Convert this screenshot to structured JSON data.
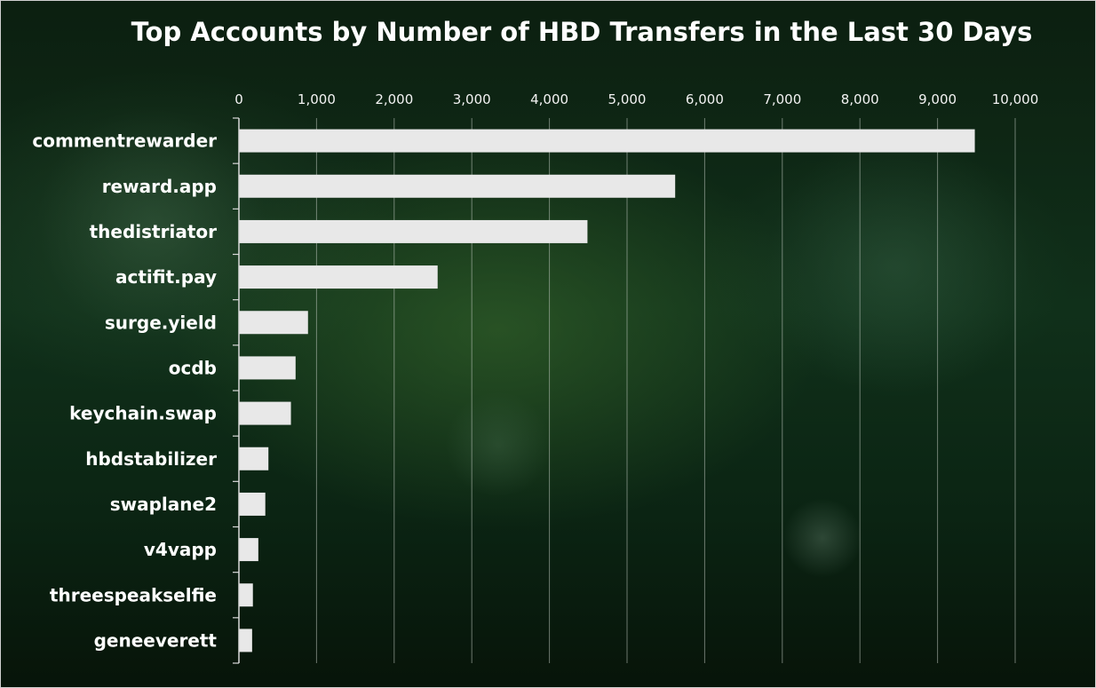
{
  "colors": {
    "bar": "#e8e8e8",
    "grid": "#bfc7bf",
    "text": "#ffffff",
    "axis": "#d9d9d9"
  },
  "chart_data": {
    "type": "bar",
    "orientation": "horizontal",
    "title": "Top Accounts by Number of HBD Transfers in the Last 30 Days",
    "xlabel": "",
    "ylabel": "",
    "x_axis_position": "top",
    "xlim": [
      0,
      10000
    ],
    "xticks": [
      0,
      1000,
      2000,
      3000,
      4000,
      5000,
      6000,
      7000,
      8000,
      9000,
      10000
    ],
    "xtick_labels": [
      "0",
      "1,000",
      "2,000",
      "3,000",
      "4,000",
      "5,000",
      "6,000",
      "7,000",
      "8,000",
      "9,000",
      "10,000"
    ],
    "grid": true,
    "legend": "none",
    "categories": [
      "commentrewarder",
      "reward.app",
      "thedistriator",
      "actifit.pay",
      "surge.yield",
      "ocdb",
      "keychain.swap",
      "hbdstabilizer",
      "swaplane2",
      "v4vapp",
      "threespeakselfie",
      "geneeverett"
    ],
    "values": [
      9480,
      5620,
      4490,
      2560,
      890,
      730,
      670,
      380,
      340,
      250,
      180,
      170
    ]
  }
}
